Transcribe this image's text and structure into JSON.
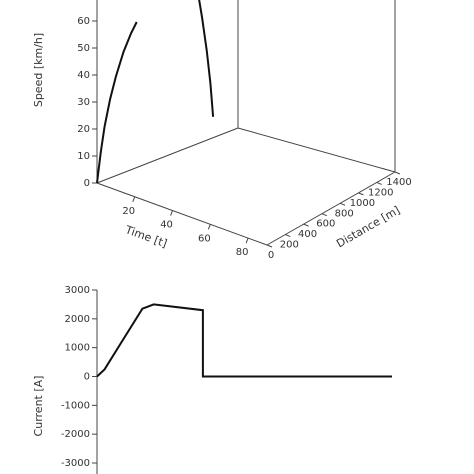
{
  "chart_data": [
    {
      "type": "line",
      "projection": "3d",
      "xlabel": "Time [t]",
      "ylabel": "Distance [m]",
      "zlabel": "Speed [km/h]",
      "x_ticks": [
        "20",
        "40",
        "60",
        "80"
      ],
      "y_ticks": [
        "0",
        "200",
        "400",
        "600",
        "800",
        "1000",
        "1200",
        "1400"
      ],
      "z_ticks": [
        "0",
        "10",
        "20",
        "30",
        "40",
        "50",
        "60"
      ],
      "xlim": [
        0,
        90
      ],
      "ylim": [
        0,
        1400
      ],
      "zlim": [
        0,
        60
      ],
      "series": [
        {
          "points": [
            {
              "t": 0,
              "d": 0,
              "v": 0
            },
            {
              "t": 2,
              "d": 0,
              "v": 12
            },
            {
              "t": 4,
              "d": 0,
              "v": 22
            },
            {
              "t": 7,
              "d": 0,
              "v": 33
            },
            {
              "t": 10,
              "d": 0,
              "v": 42
            },
            {
              "t": 14,
              "d": 0,
              "v": 52
            },
            {
              "t": 18,
              "d": 0,
              "v": 60
            },
            {
              "t": 21,
              "d": 0,
              "v": 65
            }
          ]
        },
        {
          "points": [
            {
              "t": 0,
              "d": 1000,
              "v": 68
            },
            {
              "t": 0,
              "d": 1050,
              "v": 60
            },
            {
              "t": 0,
              "d": 1100,
              "v": 50
            },
            {
              "t": 0,
              "d": 1150,
              "v": 39
            },
            {
              "t": 0,
              "d": 1200,
              "v": 26
            },
            {
              "t": 0,
              "d": 1240,
              "v": 13
            },
            {
              "t": 0,
              "d": 1270,
              "v": 0
            }
          ]
        }
      ]
    },
    {
      "type": "line",
      "ylabel": "Current [A]",
      "y_ticks": [
        "3000",
        "2000",
        "1000",
        "0",
        "-1000",
        "-2000",
        "-3000"
      ],
      "ylim": [
        -3200,
        3000
      ],
      "xlim": [
        0,
        100
      ],
      "series": [
        {
          "x": [
            0,
            2,
            12,
            15,
            28,
            28,
            78
          ],
          "y": [
            0,
            250,
            2350,
            2500,
            2300,
            0,
            0
          ]
        }
      ]
    }
  ]
}
